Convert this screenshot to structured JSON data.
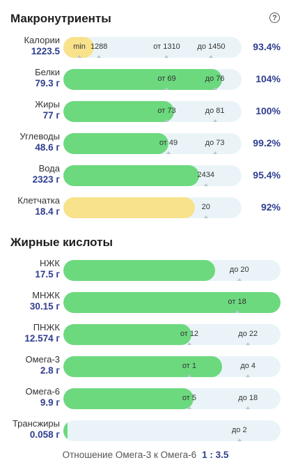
{
  "macro": {
    "title": "Макронутриенты",
    "help_glyph": "?",
    "rows": [
      {
        "name": "Калории",
        "value": "1223.5",
        "percent": "93.4%",
        "fill": 0.17,
        "color": "yellow",
        "markers": [
          {
            "text": "min",
            "at": 0.09
          },
          {
            "text": "1288",
            "at": 0.2
          },
          {
            "text": "от 1310",
            "at": 0.58
          },
          {
            "text": "до 1450",
            "at": 0.83
          }
        ]
      },
      {
        "name": "Белки",
        "value": "79.3 г",
        "percent": "104%",
        "fill": 0.89,
        "color": "green",
        "markers": [
          {
            "text": "от 69",
            "at": 0.58
          },
          {
            "text": "до 76",
            "at": 0.85
          }
        ]
      },
      {
        "name": "Жиры",
        "value": "77 г",
        "percent": "100%",
        "fill": 0.62,
        "color": "green",
        "markers": [
          {
            "text": "от 73",
            "at": 0.58
          },
          {
            "text": "до 81",
            "at": 0.85
          }
        ]
      },
      {
        "name": "Углеводы",
        "value": "48.6 г",
        "percent": "99.2%",
        "fill": 0.59,
        "color": "green",
        "markers": [
          {
            "text": "от 49",
            "at": 0.59
          },
          {
            "text": "до 73",
            "at": 0.85
          }
        ]
      },
      {
        "name": "Вода",
        "value": "2323 г",
        "percent": "95.4%",
        "fill": 0.76,
        "color": "green",
        "markers": [
          {
            "text": "2434",
            "at": 0.8
          }
        ]
      },
      {
        "name": "Клетчатка",
        "value": "18.4 г",
        "percent": "92%",
        "fill": 0.74,
        "color": "yellow",
        "markers": [
          {
            "text": "20",
            "at": 0.8
          }
        ]
      }
    ]
  },
  "fatty": {
    "title": "Жирные кислоты",
    "rows": [
      {
        "name": "НЖК",
        "value": "17.5 г",
        "fill": 0.7,
        "color": "green",
        "markers": [
          {
            "text": "до 20",
            "at": 0.81
          }
        ]
      },
      {
        "name": "МНЖК",
        "value": "30.15 г",
        "fill": 1.0,
        "color": "green",
        "markers": [
          {
            "text": "от 18",
            "at": 0.8
          }
        ]
      },
      {
        "name": "ПНЖК",
        "value": "12.574 г",
        "fill": 0.59,
        "color": "green",
        "markers": [
          {
            "text": "от 12",
            "at": 0.58
          },
          {
            "text": "до 22",
            "at": 0.85
          }
        ]
      },
      {
        "name": "Омега-3",
        "value": "2.8 г",
        "fill": 0.73,
        "color": "green",
        "markers": [
          {
            "text": "от 1",
            "at": 0.58
          },
          {
            "text": "до 4",
            "at": 0.85
          }
        ]
      },
      {
        "name": "Омега-6",
        "value": "9.9 г",
        "fill": 0.6,
        "color": "green",
        "markers": [
          {
            "text": "от 5",
            "at": 0.58
          },
          {
            "text": "до 18",
            "at": 0.85
          }
        ]
      },
      {
        "name": "Трансжиры",
        "value": "0.058 г",
        "fill": 0.02,
        "color": "green",
        "markers": [
          {
            "text": "до 2",
            "at": 0.81
          }
        ]
      }
    ]
  },
  "ratio": {
    "label": "Отношение Омега-3 к Омега-6",
    "value": "1 : 3.5"
  }
}
